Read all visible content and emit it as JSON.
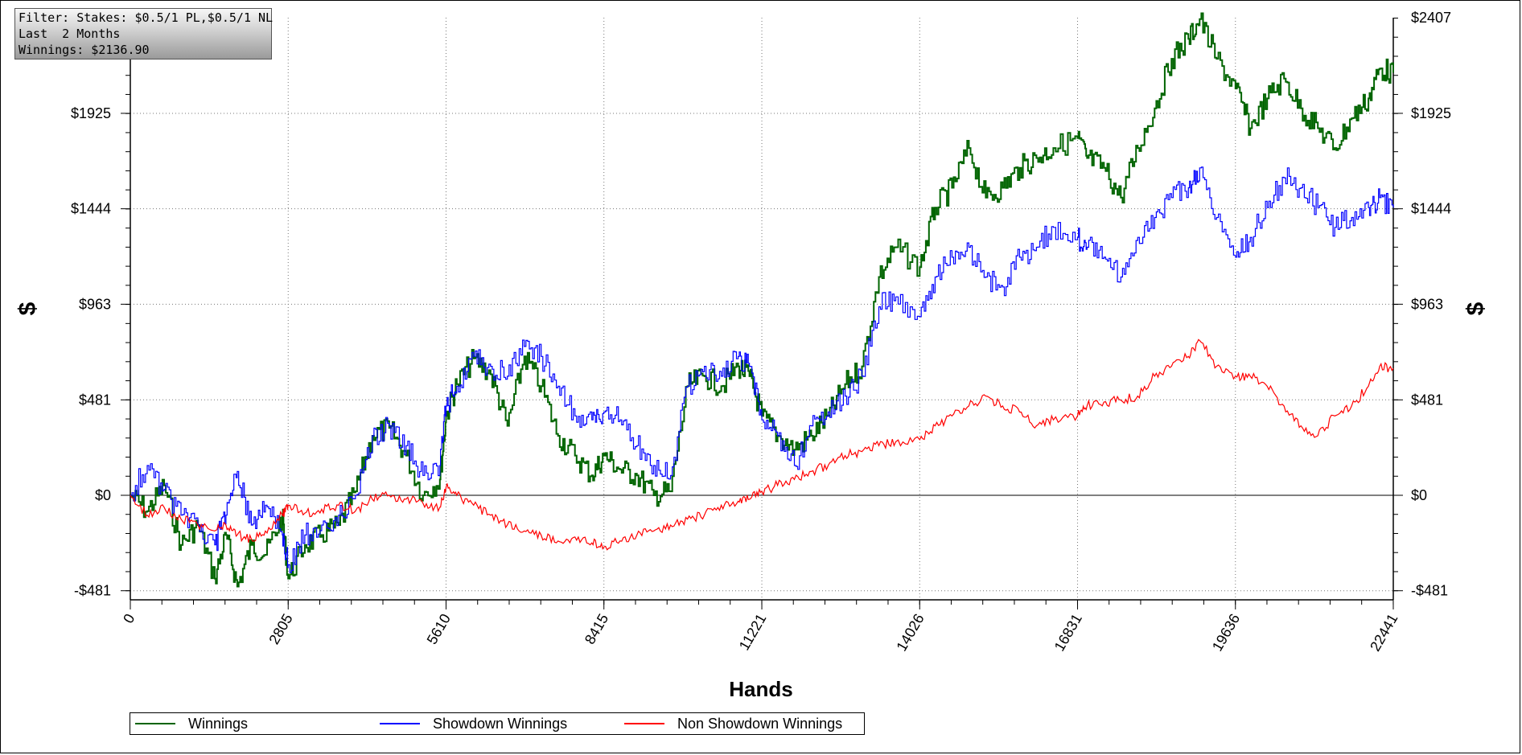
{
  "filter": {
    "line1": "Filter: Stakes: $0.5/1 PL,$0.5/1 NL",
    "line2": "Last  2 Months",
    "line3": "Winnings: $2136.90"
  },
  "chart_data": {
    "type": "line",
    "xlabel": "Hands",
    "ylabel": "$",
    "xlim": [
      0,
      22441
    ],
    "ylim": [
      -481,
      2407
    ],
    "x_ticks": [
      0,
      2805,
      5610,
      8415,
      11221,
      14026,
      16831,
      19636,
      22441
    ],
    "x_tick_labels": [
      "0",
      "2805",
      "5610",
      "8415",
      "11221",
      "14026",
      "16831",
      "19636",
      "22441"
    ],
    "y_ticks": [
      -481,
      0,
      481,
      963,
      1444,
      1925
    ],
    "y_tick_labels": [
      "-$481",
      "$0",
      "$481",
      "$963",
      "$1444",
      "$1925"
    ],
    "y_top_label": "$2407",
    "grid": true,
    "legend_position": "bottom",
    "series": [
      {
        "name": "Winnings",
        "color": "#006400",
        "x": [
          0,
          300,
          600,
          900,
          1200,
          1500,
          1700,
          1900,
          2150,
          2400,
          2700,
          2805,
          3100,
          3400,
          3700,
          4000,
          4300,
          4600,
          4900,
          5200,
          5500,
          5610,
          5800,
          6100,
          6400,
          6700,
          7000,
          7300,
          7600,
          7900,
          8200,
          8415,
          8700,
          9000,
          9300,
          9600,
          9900,
          10200,
          10500,
          10800,
          11000,
          11221,
          11500,
          11800,
          12100,
          12400,
          12700,
          13000,
          13300,
          13600,
          14026,
          14300,
          14600,
          14900,
          15200,
          15500,
          15800,
          16100,
          16400,
          16831,
          17000,
          17300,
          17600,
          17900,
          18200,
          18500,
          18800,
          19000,
          19300,
          19636,
          19900,
          20200,
          20500,
          20800,
          21100,
          21400,
          21700,
          22000,
          22200,
          22441
        ],
        "values": [
          0,
          -80,
          50,
          -250,
          -150,
          -420,
          -200,
          -460,
          -250,
          -300,
          -100,
          -420,
          -250,
          -200,
          -150,
          20,
          300,
          340,
          200,
          0,
          80,
          400,
          560,
          690,
          610,
          350,
          700,
          550,
          300,
          200,
          100,
          200,
          130,
          100,
          0,
          20,
          550,
          600,
          550,
          650,
          600,
          400,
          300,
          230,
          300,
          400,
          560,
          650,
          1100,
          1250,
          1150,
          1450,
          1550,
          1750,
          1500,
          1550,
          1650,
          1700,
          1750,
          1800,
          1700,
          1650,
          1500,
          1750,
          1950,
          2200,
          2300,
          2400,
          2200,
          2050,
          1850,
          2000,
          2100,
          1950,
          1850,
          1750,
          1900,
          2000,
          2150,
          2130
        ]
      },
      {
        "name": "Showdown Winnings",
        "color": "#0000ff",
        "x": [
          0,
          300,
          600,
          900,
          1200,
          1500,
          1700,
          1900,
          2150,
          2400,
          2700,
          2805,
          3100,
          3400,
          3700,
          4000,
          4300,
          4600,
          4900,
          5200,
          5500,
          5610,
          5800,
          6100,
          6400,
          6700,
          7000,
          7300,
          7600,
          7900,
          8200,
          8415,
          8700,
          9000,
          9300,
          9600,
          9900,
          10200,
          10500,
          10800,
          11000,
          11221,
          11500,
          11800,
          12100,
          12400,
          12700,
          13000,
          13300,
          13600,
          14026,
          14300,
          14600,
          14900,
          15200,
          15500,
          15800,
          16100,
          16400,
          16831,
          17000,
          17300,
          17600,
          17900,
          18200,
          18500,
          18800,
          19000,
          19300,
          19636,
          19900,
          20200,
          20500,
          20800,
          21100,
          21400,
          21700,
          22000,
          22200,
          22441
        ],
        "values": [
          0,
          150,
          30,
          -100,
          -150,
          -250,
          -100,
          120,
          -150,
          -50,
          -200,
          -350,
          -200,
          -150,
          -100,
          0,
          300,
          350,
          250,
          100,
          150,
          450,
          550,
          700,
          650,
          600,
          750,
          700,
          550,
          400,
          380,
          420,
          380,
          250,
          150,
          100,
          550,
          650,
          600,
          700,
          650,
          380,
          300,
          150,
          350,
          420,
          500,
          600,
          950,
          1000,
          900,
          1100,
          1200,
          1250,
          1100,
          1050,
          1200,
          1250,
          1350,
          1300,
          1250,
          1200,
          1100,
          1300,
          1400,
          1500,
          1550,
          1650,
          1400,
          1200,
          1300,
          1450,
          1600,
          1550,
          1450,
          1350,
          1400,
          1450,
          1500,
          1450
        ]
      },
      {
        "name": "Non Showdown Winnings",
        "color": "#ff0000",
        "x": [
          0,
          300,
          600,
          900,
          1200,
          1500,
          1700,
          1900,
          2150,
          2400,
          2700,
          2805,
          3100,
          3400,
          3700,
          4000,
          4300,
          4600,
          4900,
          5200,
          5500,
          5610,
          5800,
          6100,
          6400,
          6700,
          7000,
          7300,
          7600,
          7900,
          8200,
          8415,
          8700,
          9000,
          9300,
          9600,
          9900,
          10200,
          10500,
          10800,
          11000,
          11221,
          11500,
          11800,
          12100,
          12400,
          12700,
          13000,
          13300,
          13600,
          14026,
          14300,
          14600,
          14900,
          15200,
          15500,
          15800,
          16100,
          16400,
          16831,
          17000,
          17300,
          17600,
          17900,
          18200,
          18500,
          18800,
          19000,
          19300,
          19636,
          19900,
          20200,
          20500,
          20800,
          21100,
          21400,
          21700,
          22000,
          22200,
          22441
        ],
        "values": [
          0,
          -100,
          -60,
          -120,
          -150,
          -180,
          -150,
          -200,
          -220,
          -180,
          -100,
          -50,
          -90,
          -70,
          -50,
          -80,
          -20,
          0,
          -20,
          -40,
          -60,
          40,
          0,
          -50,
          -100,
          -150,
          -180,
          -200,
          -230,
          -210,
          -240,
          -260,
          -230,
          -200,
          -180,
          -150,
          -120,
          -100,
          -50,
          -30,
          -20,
          20,
          50,
          80,
          120,
          150,
          200,
          220,
          250,
          270,
          280,
          350,
          400,
          450,
          500,
          450,
          420,
          350,
          380,
          400,
          450,
          470,
          480,
          500,
          600,
          650,
          700,
          780,
          650,
          600,
          600,
          550,
          450,
          350,
          300,
          400,
          450,
          550,
          650,
          640
        ]
      }
    ]
  }
}
